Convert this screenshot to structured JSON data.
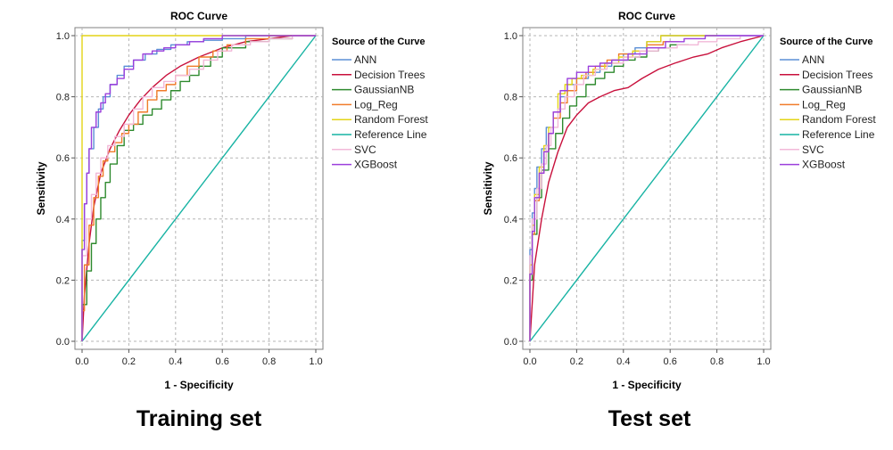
{
  "chart_data": [
    {
      "type": "line",
      "title": "ROC Curve",
      "xlabel": "1 - Specificity",
      "ylabel": "Sensitivity",
      "xlim": [
        0,
        1
      ],
      "ylim": [
        0,
        1
      ],
      "xticks": [
        "0.0",
        "0.2",
        "0.4",
        "0.6",
        "0.8",
        "1.0"
      ],
      "yticks": [
        "0.0",
        "0.2",
        "0.4",
        "0.6",
        "0.8",
        "1.0"
      ],
      "grid": true,
      "legend_title": "Source of the Curve",
      "legend_position": "right",
      "caption": "Training set",
      "series": [
        {
          "name": "ANN",
          "color": "#5b8fd6",
          "step": true,
          "x": [
            0,
            0.01,
            0.02,
            0.03,
            0.05,
            0.07,
            0.09,
            0.12,
            0.15,
            0.18,
            0.22,
            0.27,
            0.32,
            0.38,
            0.45,
            0.52,
            0.6,
            0.7,
            0.8,
            1.0
          ],
          "y": [
            0,
            0.33,
            0.45,
            0.55,
            0.63,
            0.7,
            0.76,
            0.8,
            0.84,
            0.87,
            0.9,
            0.92,
            0.94,
            0.955,
            0.97,
            0.98,
            0.985,
            0.99,
            1.0,
            1.0
          ]
        },
        {
          "name": "Decision Trees",
          "color": "#c8103c",
          "step": false,
          "x": [
            0,
            0.01,
            0.03,
            0.05,
            0.08,
            0.12,
            0.16,
            0.2,
            0.25,
            0.3,
            0.36,
            0.42,
            0.5,
            0.6,
            0.7,
            0.8,
            0.9,
            1.0
          ],
          "y": [
            0,
            0.15,
            0.32,
            0.44,
            0.55,
            0.63,
            0.69,
            0.74,
            0.79,
            0.83,
            0.87,
            0.9,
            0.93,
            0.96,
            0.98,
            0.99,
            1.0,
            1.0
          ]
        },
        {
          "name": "GaussianNB",
          "color": "#2e8a2e",
          "step": true,
          "x": [
            0,
            0.02,
            0.04,
            0.06,
            0.08,
            0.1,
            0.12,
            0.15,
            0.18,
            0.22,
            0.26,
            0.3,
            0.34,
            0.38,
            0.42,
            0.46,
            0.5,
            0.55,
            0.6,
            0.7,
            0.8,
            0.9,
            1.0
          ],
          "y": [
            0,
            0.12,
            0.23,
            0.32,
            0.4,
            0.47,
            0.52,
            0.58,
            0.64,
            0.69,
            0.71,
            0.74,
            0.76,
            0.79,
            0.82,
            0.85,
            0.87,
            0.9,
            0.93,
            0.96,
            0.98,
            0.99,
            1.0
          ]
        },
        {
          "name": "Log_Reg",
          "color": "#f07b2a",
          "step": true,
          "x": [
            0,
            0.01,
            0.03,
            0.05,
            0.07,
            0.09,
            0.11,
            0.14,
            0.17,
            0.2,
            0.24,
            0.28,
            0.32,
            0.36,
            0.4,
            0.45,
            0.5,
            0.56,
            0.62,
            0.7,
            0.8,
            0.9,
            1.0
          ],
          "y": [
            0,
            0.1,
            0.25,
            0.38,
            0.47,
            0.54,
            0.59,
            0.62,
            0.65,
            0.68,
            0.71,
            0.75,
            0.79,
            0.82,
            0.84,
            0.87,
            0.9,
            0.93,
            0.95,
            0.97,
            0.99,
            1.0,
            1.0
          ]
        },
        {
          "name": "Random Forest",
          "color": "#e3d417",
          "step": false,
          "x": [
            0,
            0.0,
            0.01,
            1.0
          ],
          "y": [
            0,
            1.0,
            1.0,
            1.0
          ]
        },
        {
          "name": "Reference Line",
          "color": "#17b3a3",
          "step": false,
          "x": [
            0,
            1
          ],
          "y": [
            0,
            1
          ]
        },
        {
          "name": "SVC",
          "color": "#f2b8d8",
          "step": true,
          "x": [
            0,
            0.02,
            0.04,
            0.06,
            0.08,
            0.11,
            0.14,
            0.18,
            0.22,
            0.26,
            0.3,
            0.35,
            0.4,
            0.46,
            0.52,
            0.58,
            0.64,
            0.72,
            0.8,
            0.9,
            1.0
          ],
          "y": [
            0,
            0.28,
            0.4,
            0.48,
            0.55,
            0.6,
            0.64,
            0.67,
            0.71,
            0.76,
            0.8,
            0.83,
            0.85,
            0.87,
            0.89,
            0.92,
            0.95,
            0.97,
            0.98,
            0.99,
            1.0
          ]
        },
        {
          "name": "XGBoost",
          "color": "#9b3fdc",
          "step": true,
          "x": [
            0,
            0.01,
            0.02,
            0.03,
            0.04,
            0.06,
            0.08,
            0.1,
            0.12,
            0.15,
            0.18,
            0.22,
            0.26,
            0.3,
            0.35,
            0.4,
            0.46,
            0.52,
            0.6,
            0.7,
            0.8,
            1.0
          ],
          "y": [
            0,
            0.3,
            0.45,
            0.55,
            0.63,
            0.7,
            0.75,
            0.78,
            0.81,
            0.84,
            0.86,
            0.89,
            0.92,
            0.94,
            0.95,
            0.96,
            0.97,
            0.98,
            0.99,
            1.0,
            1.0,
            1.0
          ]
        }
      ]
    },
    {
      "type": "line",
      "title": "ROC Curve",
      "xlabel": "1 - Specificity",
      "ylabel": "Sensitivity",
      "xlim": [
        0,
        1
      ],
      "ylim": [
        0,
        1
      ],
      "xticks": [
        "0.0",
        "0.2",
        "0.4",
        "0.6",
        "0.8",
        "1.0"
      ],
      "yticks": [
        "0.0",
        "0.2",
        "0.4",
        "0.6",
        "0.8",
        "1.0"
      ],
      "grid": true,
      "legend_title": "Source of the Curve",
      "legend_position": "right",
      "caption": "Test set",
      "series": [
        {
          "name": "ANN",
          "color": "#5b8fd6",
          "step": true,
          "x": [
            0,
            0.01,
            0.02,
            0.03,
            0.05,
            0.07,
            0.1,
            0.13,
            0.16,
            0.2,
            0.25,
            0.3,
            0.35,
            0.4,
            0.45,
            0.5,
            0.56,
            0.62,
            0.7,
            0.8,
            1.0
          ],
          "y": [
            0,
            0.3,
            0.42,
            0.5,
            0.57,
            0.63,
            0.7,
            0.75,
            0.8,
            0.84,
            0.86,
            0.88,
            0.9,
            0.92,
            0.94,
            0.96,
            0.98,
            1.0,
            1.0,
            1.0,
            1.0
          ]
        },
        {
          "name": "Decision Trees",
          "color": "#c8103c",
          "step": false,
          "x": [
            0,
            0.02,
            0.05,
            0.08,
            0.12,
            0.16,
            0.2,
            0.25,
            0.3,
            0.36,
            0.42,
            0.48,
            0.55,
            0.62,
            0.7,
            0.76,
            0.82,
            0.9,
            1.0
          ],
          "y": [
            0,
            0.25,
            0.4,
            0.52,
            0.62,
            0.7,
            0.74,
            0.78,
            0.8,
            0.82,
            0.83,
            0.86,
            0.89,
            0.91,
            0.93,
            0.94,
            0.96,
            0.98,
            1.0
          ]
        },
        {
          "name": "GaussianNB",
          "color": "#2e8a2e",
          "step": true,
          "x": [
            0,
            0.01,
            0.03,
            0.05,
            0.08,
            0.11,
            0.14,
            0.17,
            0.2,
            0.24,
            0.28,
            0.32,
            0.36,
            0.4,
            0.45,
            0.5,
            0.55,
            0.6,
            0.68
          ],
          "y": [
            0,
            0.2,
            0.35,
            0.47,
            0.56,
            0.63,
            0.68,
            0.73,
            0.77,
            0.8,
            0.84,
            0.86,
            0.88,
            0.9,
            0.92,
            0.93,
            0.95,
            0.96,
            0.97
          ]
        },
        {
          "name": "Log_Reg",
          "color": "#f07b2a",
          "step": true,
          "x": [
            0,
            0.01,
            0.02,
            0.04,
            0.06,
            0.08,
            0.1,
            0.13,
            0.16,
            0.2,
            0.24,
            0.28,
            0.33,
            0.38,
            0.44,
            0.5,
            0.57,
            0.64
          ],
          "y": [
            0,
            0.22,
            0.35,
            0.46,
            0.55,
            0.62,
            0.68,
            0.73,
            0.78,
            0.82,
            0.86,
            0.88,
            0.9,
            0.92,
            0.94,
            0.95,
            0.97,
            0.98
          ]
        },
        {
          "name": "Random Forest",
          "color": "#e3d417",
          "step": true,
          "x": [
            0,
            0.01,
            0.02,
            0.04,
            0.06,
            0.08,
            0.1,
            0.12,
            0.15,
            0.18,
            0.22,
            0.27,
            0.32,
            0.38,
            0.44,
            0.5,
            0.56,
            0.6,
            0.7,
            0.8
          ],
          "y": [
            0,
            0.25,
            0.38,
            0.48,
            0.57,
            0.64,
            0.7,
            0.75,
            0.81,
            0.84,
            0.86,
            0.87,
            0.89,
            0.91,
            0.93,
            0.95,
            0.98,
            1.0,
            1.0,
            1.0
          ]
        },
        {
          "name": "Reference Line",
          "color": "#17b3a3",
          "step": false,
          "x": [
            0,
            1
          ],
          "y": [
            0,
            1
          ]
        },
        {
          "name": "SVC",
          "color": "#f2b8d8",
          "step": true,
          "x": [
            0,
            0.01,
            0.03,
            0.05,
            0.07,
            0.09,
            0.12,
            0.15,
            0.19,
            0.23,
            0.28,
            0.33,
            0.4,
            0.47,
            0.55,
            0.63,
            0.72,
            0.8,
            0.9,
            1.0
          ],
          "y": [
            0,
            0.28,
            0.4,
            0.5,
            0.58,
            0.64,
            0.7,
            0.76,
            0.8,
            0.84,
            0.87,
            0.89,
            0.91,
            0.93,
            0.95,
            0.96,
            0.97,
            0.98,
            0.99,
            1.0
          ]
        },
        {
          "name": "XGBoost",
          "color": "#9b3fdc",
          "step": true,
          "x": [
            0,
            0.01,
            0.02,
            0.04,
            0.06,
            0.08,
            0.1,
            0.13,
            0.16,
            0.2,
            0.25,
            0.3,
            0.35,
            0.42,
            0.5,
            0.58,
            0.66,
            0.75,
            0.85,
            1.0
          ],
          "y": [
            0,
            0.22,
            0.36,
            0.47,
            0.55,
            0.62,
            0.68,
            0.75,
            0.82,
            0.86,
            0.88,
            0.9,
            0.91,
            0.92,
            0.94,
            0.96,
            0.98,
            0.99,
            1.0,
            1.0
          ]
        }
      ]
    }
  ]
}
